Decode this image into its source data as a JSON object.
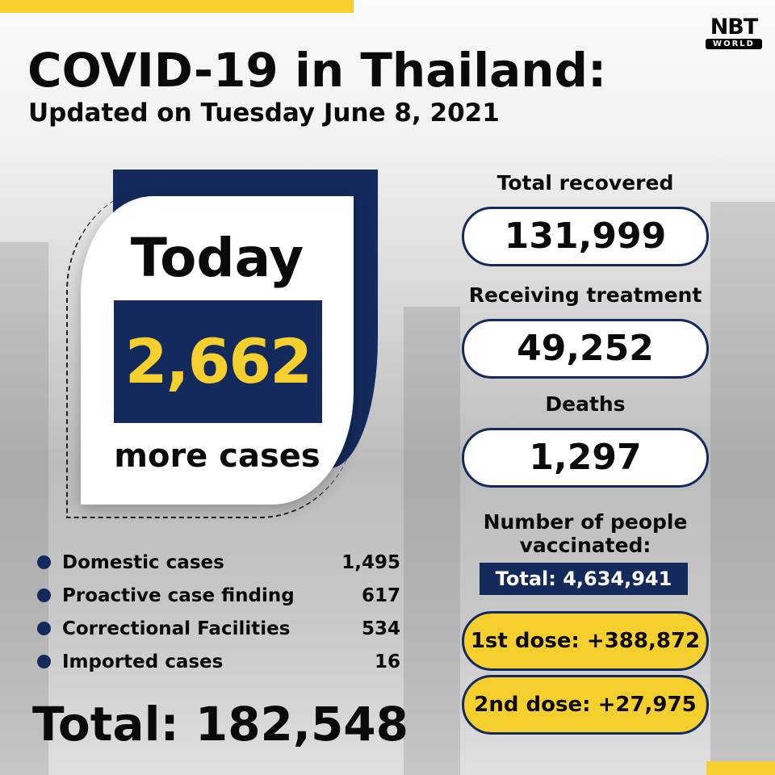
{
  "header": {
    "title": "COVID-19 in Thailand:",
    "subtitle": "Updated on Tuesday June 8, 2021"
  },
  "logo": {
    "main": "NBT",
    "sub": "WORLD"
  },
  "today": {
    "label": "Today",
    "value": "2,662",
    "caption": "more cases"
  },
  "breakdown": [
    {
      "label": "Domestic cases",
      "value": "1,495"
    },
    {
      "label": "Proactive case finding",
      "value": "617"
    },
    {
      "label": "Correctional Facilities",
      "value": "534"
    },
    {
      "label": "Imported cases",
      "value": "16"
    }
  ],
  "total": "Total: 182,548",
  "stats": {
    "recovered": {
      "label": "Total recovered",
      "value": "131,999"
    },
    "treatment": {
      "label": "Receiving treatment",
      "value": "49,252"
    },
    "deaths": {
      "label": "Deaths",
      "value": "1,297"
    }
  },
  "vaccination": {
    "label_line1": "Number of people",
    "label_line2": "vaccinated:",
    "total": "Total: 4,634,941",
    "first_dose": "1st dose: +388,872",
    "second_dose": "2nd dose: +27,975"
  },
  "colors": {
    "navy": "#142a5c",
    "yellow": "#f5cf2e"
  }
}
